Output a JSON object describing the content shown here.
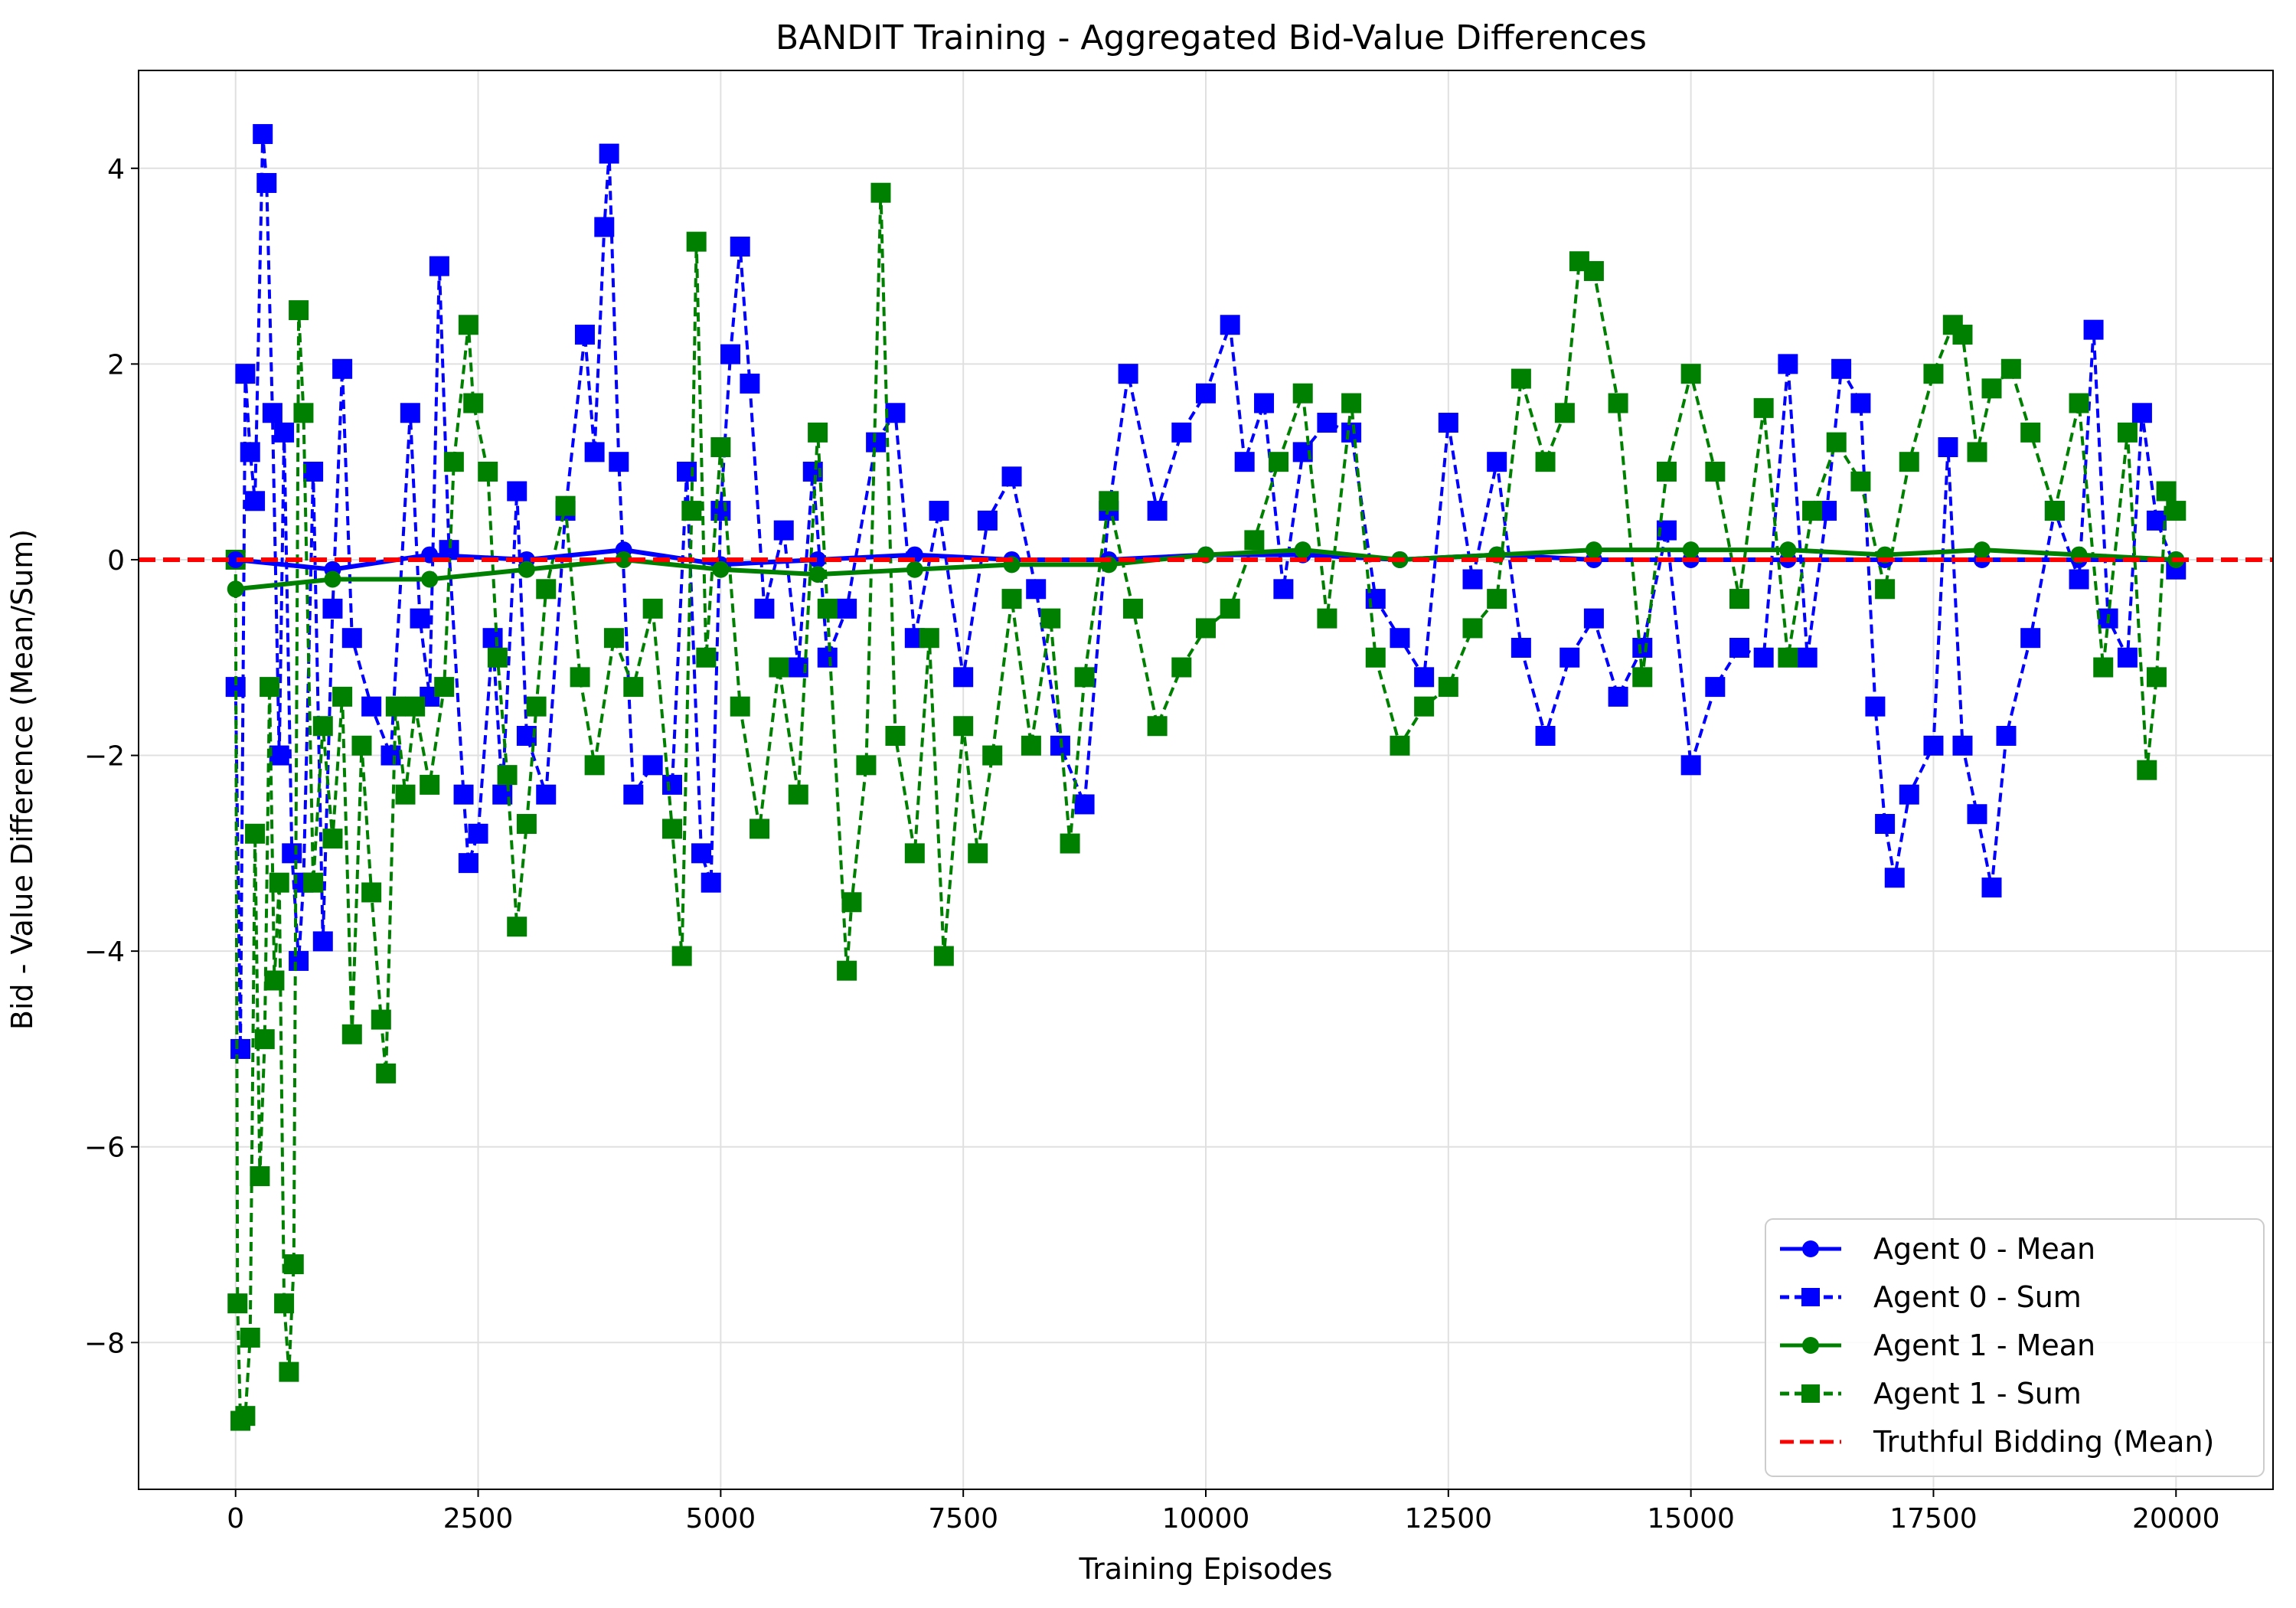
{
  "chart_data": {
    "type": "line",
    "title": "BANDIT Training - Aggregated Bid-Value Differences",
    "xlabel": "Training Episodes",
    "ylabel": "Bid - Value Difference (Mean/Sum)",
    "xlim": [
      -1000,
      21000
    ],
    "ylim": [
      -9.5,
      5.0
    ],
    "xticks": [
      0,
      2500,
      5000,
      7500,
      10000,
      12500,
      15000,
      17500,
      20000
    ],
    "xtick_labels": [
      "0",
      "2500",
      "5000",
      "7500",
      "10000",
      "12500",
      "15000",
      "17500",
      "20000"
    ],
    "yticks": [
      -8,
      -6,
      -4,
      -2,
      0,
      2,
      4
    ],
    "ytick_labels": [
      "−8",
      "−6",
      "−4",
      "−2",
      "0",
      "2",
      "4"
    ],
    "grid": true,
    "legend_position": "lower-right",
    "reference_line": {
      "name": "Truthful Bidding (Mean)",
      "y": 0,
      "color": "#ff0000",
      "style": "dashed"
    },
    "series": [
      {
        "name": "Agent 0 - Mean",
        "color": "#0000ff",
        "style": "solid",
        "marker": "circle",
        "x": [
          0,
          1000,
          2000,
          3000,
          4000,
          5000,
          6000,
          7000,
          8000,
          9000,
          10000,
          11000,
          12000,
          13000,
          14000,
          15000,
          16000,
          17000,
          18000,
          19000,
          20000
        ],
        "values": [
          0.0,
          -0.1,
          0.05,
          0.0,
          0.1,
          -0.05,
          0.0,
          0.05,
          0.0,
          0.0,
          0.05,
          0.05,
          0.0,
          0.05,
          0.0,
          0.0,
          0.0,
          0.0,
          0.0,
          0.0,
          0.0
        ]
      },
      {
        "name": "Agent 0 - Sum",
        "color": "#0000ff",
        "style": "dashed",
        "marker": "square",
        "x": [
          0,
          50,
          100,
          150,
          200,
          280,
          320,
          380,
          450,
          500,
          580,
          650,
          700,
          800,
          900,
          1000,
          1100,
          1200,
          1400,
          1600,
          1800,
          1900,
          2000,
          2100,
          2200,
          2350,
          2400,
          2500,
          2650,
          2750,
          2900,
          3000,
          3200,
          3400,
          3600,
          3700,
          3800,
          3850,
          3950,
          4100,
          4300,
          4500,
          4650,
          4800,
          4900,
          5000,
          5100,
          5200,
          5300,
          5450,
          5650,
          5800,
          5950,
          6100,
          6300,
          6600,
          6800,
          7000,
          7250,
          7500,
          7750,
          8000,
          8250,
          8500,
          8750,
          9000,
          9200,
          9500,
          9750,
          10000,
          10250,
          10400,
          10600,
          10800,
          11000,
          11250,
          11500,
          11750,
          12000,
          12250,
          12500,
          12750,
          13000,
          13250,
          13500,
          13750,
          14000,
          14250,
          14500,
          14750,
          15000,
          15250,
          15500,
          15750,
          16000,
          16200,
          16400,
          16550,
          16750,
          16900,
          17000,
          17100,
          17250,
          17500,
          17650,
          17800,
          17950,
          18100,
          18250,
          18500,
          18750,
          19000,
          19150,
          19300,
          19500,
          19650,
          19800,
          20000
        ],
        "values": [
          -1.3,
          -5.0,
          1.9,
          1.1,
          0.6,
          4.35,
          3.85,
          1.5,
          -2.0,
          1.3,
          -3.0,
          -4.1,
          -3.3,
          0.9,
          -3.9,
          -0.5,
          1.95,
          -0.8,
          -1.5,
          -2.0,
          1.5,
          -0.6,
          -1.4,
          3.0,
          0.1,
          -2.4,
          -3.1,
          -2.8,
          -0.8,
          -2.4,
          0.7,
          -1.8,
          -2.4,
          0.5,
          2.3,
          1.1,
          3.4,
          4.15,
          1.0,
          -2.4,
          -2.1,
          -2.3,
          0.9,
          -3.0,
          -3.3,
          0.5,
          2.1,
          3.2,
          1.8,
          -0.5,
          0.3,
          -1.1,
          0.9,
          -1.0,
          -0.5,
          1.2,
          1.5,
          -0.8,
          0.5,
          -1.2,
          0.4,
          0.85,
          -0.3,
          -1.9,
          -2.5,
          0.5,
          1.9,
          0.5,
          1.3,
          1.7,
          2.4,
          1.0,
          1.6,
          -0.3,
          1.1,
          1.4,
          1.3,
          -0.4,
          -0.8,
          -1.2,
          1.4,
          -0.2,
          1.0,
          -0.9,
          -1.8,
          -1.0,
          -0.6,
          -1.4,
          -0.9,
          0.3,
          -2.1,
          -1.3,
          -0.9,
          -1.0,
          2.0,
          -1.0,
          0.5,
          1.95,
          1.6,
          -1.5,
          -2.7,
          -3.25,
          -2.4,
          -1.9,
          1.15,
          -1.9,
          -2.6,
          -3.35,
          -1.8,
          -0.8,
          0.5,
          -0.2,
          2.35,
          -0.6,
          -1.0,
          1.5,
          0.4,
          -0.1
        ]
      },
      {
        "name": "Agent 1 - Mean",
        "color": "#008000",
        "style": "solid",
        "marker": "circle",
        "x": [
          0,
          1000,
          2000,
          3000,
          4000,
          5000,
          6000,
          7000,
          8000,
          9000,
          10000,
          11000,
          12000,
          13000,
          14000,
          15000,
          16000,
          17000,
          18000,
          19000,
          20000
        ],
        "values": [
          -0.3,
          -0.2,
          -0.2,
          -0.1,
          0.0,
          -0.1,
          -0.15,
          -0.1,
          -0.05,
          -0.05,
          0.05,
          0.1,
          0.0,
          0.05,
          0.1,
          0.1,
          0.1,
          0.05,
          0.1,
          0.05,
          0.0
        ]
      },
      {
        "name": "Agent 1 - Sum",
        "color": "#008000",
        "style": "dashed",
        "marker": "square",
        "x": [
          0,
          20,
          50,
          100,
          150,
          200,
          250,
          300,
          350,
          400,
          450,
          500,
          550,
          600,
          650,
          700,
          800,
          900,
          1000,
          1100,
          1200,
          1300,
          1400,
          1500,
          1550,
          1650,
          1750,
          1850,
          2000,
          2150,
          2250,
          2400,
          2450,
          2600,
          2700,
          2800,
          2900,
          3000,
          3100,
          3200,
          3400,
          3550,
          3700,
          3900,
          4100,
          4300,
          4500,
          4600,
          4700,
          4750,
          4850,
          5000,
          5200,
          5400,
          5600,
          5800,
          6000,
          6100,
          6300,
          6350,
          6500,
          6650,
          6800,
          7000,
          7150,
          7300,
          7500,
          7650,
          7800,
          8000,
          8200,
          8400,
          8600,
          8750,
          9000,
          9250,
          9500,
          9750,
          10000,
          10250,
          10500,
          10750,
          11000,
          11250,
          11500,
          11750,
          12000,
          12250,
          12500,
          12750,
          13000,
          13250,
          13500,
          13700,
          13850,
          14000,
          14250,
          14500,
          14750,
          15000,
          15250,
          15500,
          15750,
          16000,
          16250,
          16500,
          16750,
          17000,
          17250,
          17500,
          17700,
          17800,
          17950,
          18100,
          18300,
          18500,
          18750,
          19000,
          19250,
          19500,
          19700,
          19800,
          19900,
          20000
        ],
        "values": [
          0.0,
          -7.6,
          -8.8,
          -8.75,
          -7.95,
          -2.8,
          -6.3,
          -4.9,
          -1.3,
          -4.3,
          -3.3,
          -7.6,
          -8.3,
          -7.2,
          2.55,
          1.5,
          -3.3,
          -1.7,
          -2.85,
          -1.4,
          -4.85,
          -1.9,
          -3.4,
          -4.7,
          -5.25,
          -1.5,
          -2.4,
          -1.5,
          -2.3,
          -1.3,
          1.0,
          2.4,
          1.6,
          0.9,
          -1.0,
          -2.2,
          -3.75,
          -2.7,
          -1.5,
          -0.3,
          0.55,
          -1.2,
          -2.1,
          -0.8,
          -1.3,
          -0.5,
          -2.75,
          -4.05,
          0.5,
          3.25,
          -1.0,
          1.15,
          -1.5,
          -2.75,
          -1.1,
          -2.4,
          1.3,
          -0.5,
          -4.2,
          -3.5,
          -2.1,
          3.75,
          -1.8,
          -3.0,
          -0.8,
          -4.05,
          -1.7,
          -3.0,
          -2.0,
          -0.4,
          -1.9,
          -0.6,
          -2.9,
          -1.2,
          0.6,
          -0.5,
          -1.7,
          -1.1,
          -0.7,
          -0.5,
          0.2,
          1.0,
          1.7,
          -0.6,
          1.6,
          -1.0,
          -1.9,
          -1.5,
          -1.3,
          -0.7,
          -0.4,
          1.85,
          1.0,
          1.5,
          3.05,
          2.95,
          1.6,
          -1.2,
          0.9,
          1.9,
          0.9,
          -0.4,
          1.55,
          -1.0,
          0.5,
          1.2,
          0.8,
          -0.3,
          1.0,
          1.9,
          2.4,
          2.3,
          1.1,
          1.75,
          1.95,
          1.3,
          0.5,
          1.6,
          -1.1,
          1.3,
          -2.15,
          -1.2,
          0.7,
          0.5
        ]
      }
    ]
  }
}
